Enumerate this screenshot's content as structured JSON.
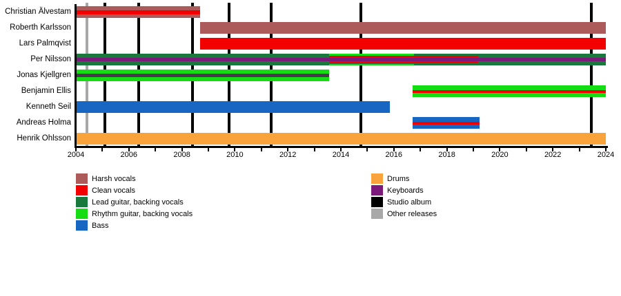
{
  "chart_data": {
    "type": "bar",
    "variant": "band-members-gantt-timeline",
    "title": "",
    "x_axis": {
      "start": 2004,
      "end": 2024,
      "tick_every": 1,
      "label_every": 2,
      "tick_labels": [
        "2004",
        "2006",
        "2008",
        "2010",
        "2012",
        "2014",
        "2016",
        "2018",
        "2020",
        "2022",
        "2024"
      ]
    },
    "colors": {
      "harsh": "#ad5a5a",
      "clean": "#f30000",
      "lead": "#19793c",
      "rhythm": "#14dd14",
      "bass": "#1767c2",
      "drums": "#f8a33c",
      "keys": "#7c1a7c",
      "keys_dark": "#4a3550",
      "album": "#000000",
      "other": "#a8a8a8"
    },
    "members": [
      {
        "name": "Christian Älvestam",
        "bars": [
          {
            "role": "harsh-vocals",
            "color": "harsh",
            "from": 2004.0,
            "till": 2008.69,
            "layer": "full"
          },
          {
            "role": "clean-vocals",
            "color": "clean",
            "from": 2004.0,
            "till": 2008.69,
            "layer": "mid6"
          }
        ]
      },
      {
        "name": "Roberth Karlsson",
        "bars": [
          {
            "role": "harsh-vocals",
            "color": "harsh",
            "from": 2008.69,
            "till": 2024.0,
            "layer": "full"
          }
        ]
      },
      {
        "name": "Lars Palmqvist",
        "bars": [
          {
            "role": "clean-vocals",
            "color": "clean",
            "from": 2008.69,
            "till": 2024.0,
            "layer": "full"
          }
        ]
      },
      {
        "name": "Per Nilsson",
        "bars": [
          {
            "role": "lead-guitar",
            "color": "lead",
            "from": 2004.0,
            "till": 2024.0,
            "layer": "full"
          },
          {
            "role": "rhythm-guitar",
            "color": "rhythm",
            "from": 2013.55,
            "till": 2016.76,
            "layer": "edge2"
          },
          {
            "role": "clean-vocals",
            "color": "clean",
            "from": 2013.55,
            "till": 2019.18,
            "layer": "ring3"
          },
          {
            "role": "keyboards",
            "color": "keys",
            "from": 2004.0,
            "till": 2024.0,
            "layer": "mid5"
          }
        ]
      },
      {
        "name": "Jonas Kjellgren",
        "bars": [
          {
            "role": "rhythm-guitar",
            "color": "rhythm",
            "from": 2004.0,
            "till": 2013.55,
            "layer": "full"
          },
          {
            "role": "keyboards",
            "color": "keys_dark",
            "from": 2004.0,
            "till": 2013.55,
            "layer": "mid5"
          }
        ]
      },
      {
        "name": "Benjamin Ellis",
        "bars": [
          {
            "role": "rhythm-guitar",
            "color": "rhythm",
            "from": 2016.71,
            "till": 2024.0,
            "layer": "full"
          },
          {
            "role": "clean-vocals",
            "color": "clean",
            "from": 2016.71,
            "till": 2024.0,
            "layer": "mid4"
          }
        ]
      },
      {
        "name": "Kenneth Seil",
        "bars": [
          {
            "role": "bass",
            "color": "bass",
            "from": 2004.0,
            "till": 2015.85,
            "layer": "full"
          }
        ]
      },
      {
        "name": "Andreas Holma",
        "bars": [
          {
            "role": "bass",
            "color": "bass",
            "from": 2016.71,
            "till": 2019.23,
            "layer": "full"
          },
          {
            "role": "clean-vocals",
            "color": "clean",
            "from": 2016.71,
            "till": 2019.23,
            "layer": "mid4"
          }
        ]
      },
      {
        "name": "Henrik Ohlsson",
        "bars": [
          {
            "role": "drums",
            "color": "drums",
            "from": 2004.0,
            "till": 2024.0,
            "layer": "full"
          }
        ]
      }
    ],
    "events": {
      "studio_albums_years": [
        2005.09,
        2006.37,
        2008.4,
        2009.78,
        2011.37,
        2014.76,
        2023.45
      ],
      "other_releases_years": [
        2004.42
      ]
    },
    "legend": {
      "columns": [
        {
          "items": [
            {
              "label": "Harsh vocals",
              "color": "harsh"
            },
            {
              "label": "Clean vocals",
              "color": "clean"
            },
            {
              "label": "Lead guitar, backing vocals",
              "color": "lead"
            },
            {
              "label": "Rhythm guitar, backing vocals",
              "color": "rhythm"
            },
            {
              "label": "Bass",
              "color": "bass"
            }
          ]
        },
        {
          "items": [
            {
              "label": "Drums",
              "color": "drums"
            },
            {
              "label": "Keyboards",
              "color": "keys"
            },
            {
              "label": "Studio album",
              "color": "album"
            },
            {
              "label": "Other releases",
              "color": "other"
            }
          ]
        }
      ]
    }
  }
}
